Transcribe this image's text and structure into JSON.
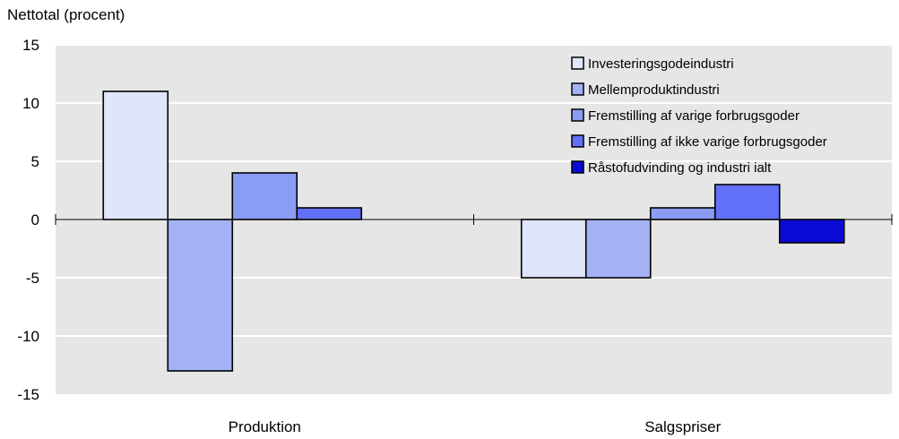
{
  "chart_data": {
    "type": "bar",
    "ylabel": "Nettotal (procent)",
    "xlabel": "",
    "title": "",
    "ylim": [
      -15,
      15
    ],
    "yticks": [
      15,
      10,
      5,
      0,
      -5,
      -10,
      -15
    ],
    "ytick_labels": [
      "15",
      "10",
      "5",
      "0",
      "-5",
      "-10",
      "-15"
    ],
    "categories": [
      "Produktion",
      "Salgspriser"
    ],
    "grid": "horizontal",
    "legend_position": "top-right",
    "series": [
      {
        "name": "Investeringsgodeindustri",
        "color": "#dfe6fa",
        "values": [
          11,
          -5
        ]
      },
      {
        "name": "Mellemproduktindustri",
        "color": "#a3b2f5",
        "values": [
          -13,
          -5
        ]
      },
      {
        "name": "Fremstilling af varige forbrugsgoder",
        "color": "#8b9cf4",
        "values": [
          4,
          1
        ]
      },
      {
        "name": "Fremstilling af ikke varige forbrugsgoder",
        "color": "#6270f7",
        "values": [
          1,
          3
        ]
      },
      {
        "name": "Råstofudvinding og industri ialt",
        "color": "#0a0ad6",
        "values": [
          0,
          -2
        ]
      }
    ],
    "colors": {
      "plot_background": "#e6e6e6",
      "gridline": "#ffffff"
    }
  }
}
